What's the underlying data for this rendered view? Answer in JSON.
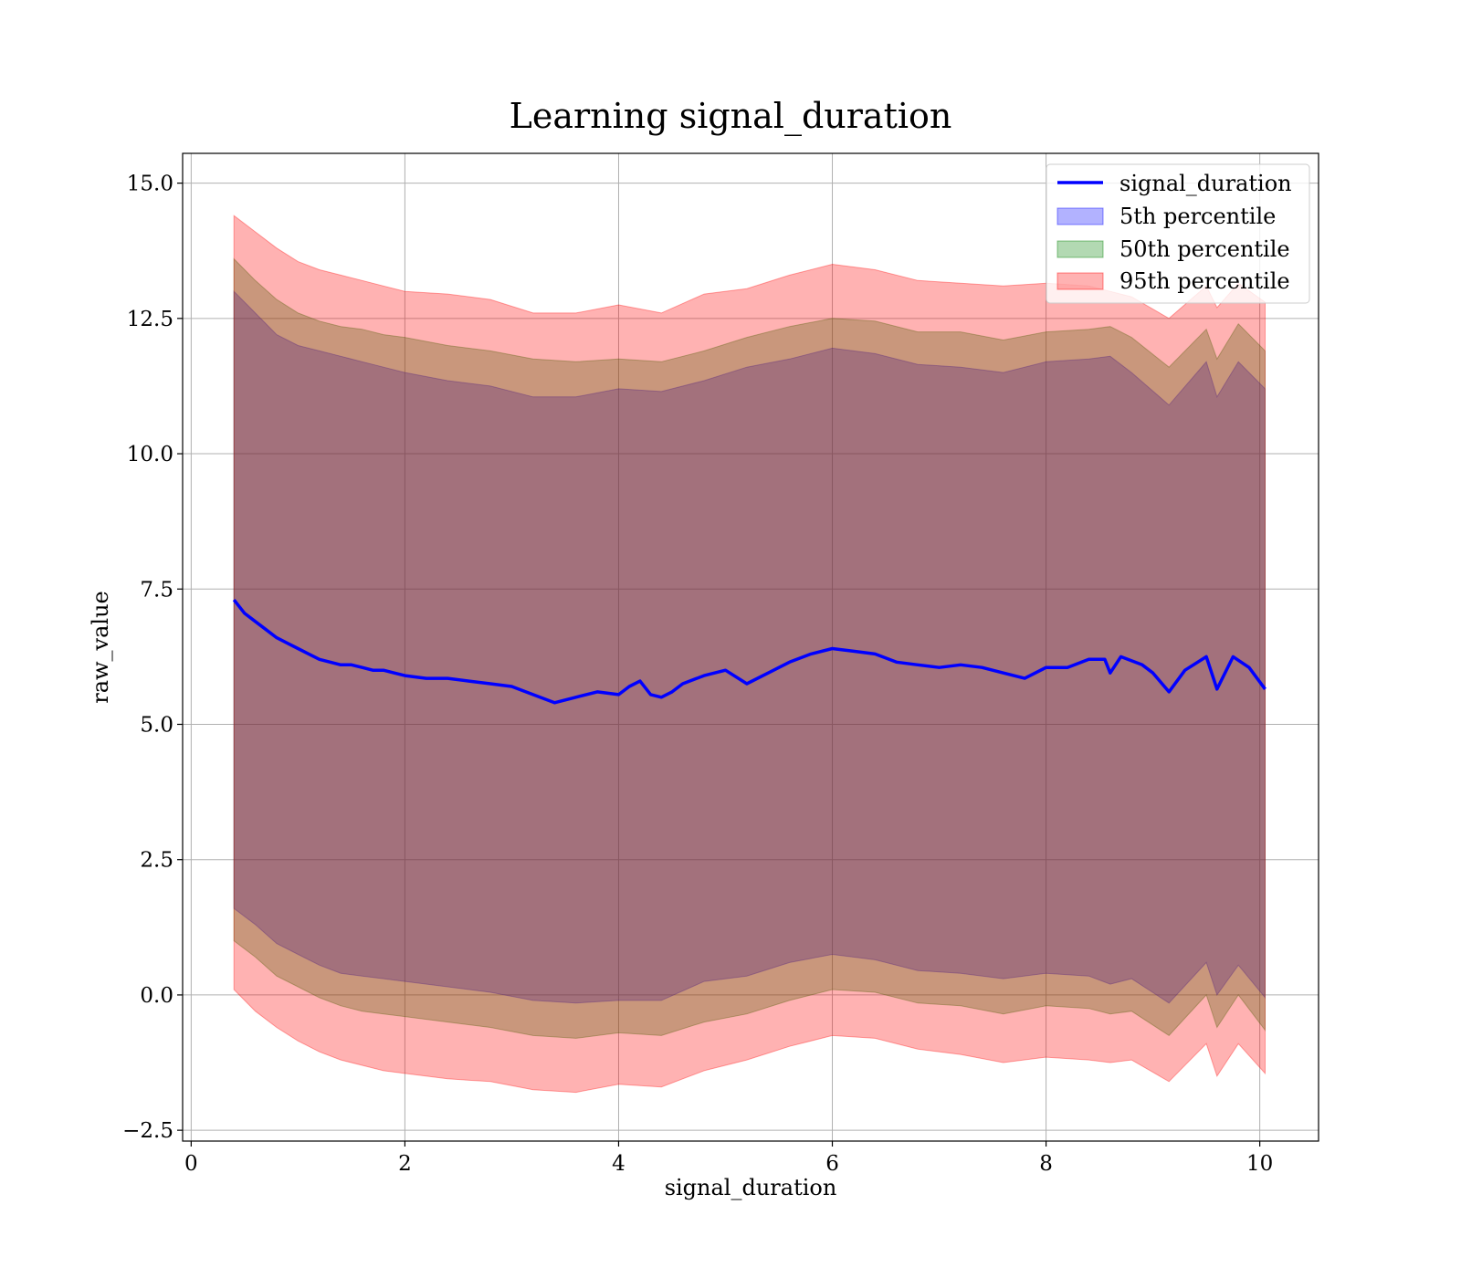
{
  "chart_data": {
    "type": "line",
    "title": "Learning signal_duration",
    "xlabel": "signal_duration",
    "ylabel": "raw_value",
    "xlim": [
      -0.08,
      10.55
    ],
    "ylim": [
      -2.7,
      15.55
    ],
    "xticks": [
      0,
      2,
      4,
      6,
      8,
      10
    ],
    "xtick_labels": [
      "0",
      "2",
      "4",
      "6",
      "8",
      "10"
    ],
    "yticks": [
      -2.5,
      0.0,
      2.5,
      5.0,
      7.5,
      10.0,
      12.5,
      15.0
    ],
    "ytick_labels": [
      "−2.5",
      "0.0",
      "2.5",
      "5.0",
      "7.5",
      "10.0",
      "12.5",
      "15.0"
    ],
    "grid": true,
    "legend_position": "top-right",
    "line": {
      "name": "signal_duration",
      "color": "#0000ff",
      "x": [
        0.4,
        0.5,
        0.6,
        0.7,
        0.8,
        0.9,
        1.0,
        1.1,
        1.2,
        1.3,
        1.4,
        1.5,
        1.6,
        1.7,
        1.8,
        1.9,
        2.0,
        2.2,
        2.4,
        2.6,
        2.8,
        3.0,
        3.2,
        3.4,
        3.6,
        3.8,
        4.0,
        4.1,
        4.2,
        4.3,
        4.4,
        4.5,
        4.6,
        4.8,
        5.0,
        5.2,
        5.4,
        5.6,
        5.8,
        6.0,
        6.2,
        6.4,
        6.6,
        6.8,
        7.0,
        7.2,
        7.4,
        7.6,
        7.8,
        8.0,
        8.2,
        8.4,
        8.55,
        8.6,
        8.7,
        8.9,
        9.0,
        9.15,
        9.3,
        9.5,
        9.6,
        9.75,
        9.9,
        10.05
      ],
      "y": [
        7.3,
        7.05,
        6.9,
        6.75,
        6.6,
        6.5,
        6.4,
        6.3,
        6.2,
        6.15,
        6.1,
        6.1,
        6.05,
        6.0,
        6.0,
        5.95,
        5.9,
        5.85,
        5.85,
        5.8,
        5.75,
        5.7,
        5.55,
        5.4,
        5.5,
        5.6,
        5.55,
        5.7,
        5.8,
        5.55,
        5.5,
        5.6,
        5.75,
        5.9,
        6.0,
        5.75,
        5.95,
        6.15,
        6.3,
        6.4,
        6.35,
        6.3,
        6.15,
        6.1,
        6.05,
        6.1,
        6.05,
        5.95,
        5.85,
        6.05,
        6.05,
        6.2,
        6.2,
        5.95,
        6.25,
        6.1,
        5.95,
        5.6,
        6.0,
        6.25,
        5.65,
        6.25,
        6.05,
        5.65
      ]
    },
    "bands": [
      {
        "name": "5th percentile",
        "color": "#0000ff",
        "opacity": 0.3,
        "x": [
          0.4,
          0.6,
          0.8,
          1.0,
          1.2,
          1.4,
          1.6,
          1.8,
          2.0,
          2.4,
          2.8,
          3.2,
          3.6,
          4.0,
          4.4,
          4.8,
          5.2,
          5.6,
          6.0,
          6.4,
          6.8,
          7.2,
          7.6,
          8.0,
          8.4,
          8.6,
          8.8,
          9.15,
          9.5,
          9.6,
          9.8,
          10.05
        ],
        "upper": [
          13.0,
          12.6,
          12.2,
          12.0,
          11.9,
          11.8,
          11.7,
          11.6,
          11.5,
          11.35,
          11.25,
          11.05,
          11.05,
          11.2,
          11.15,
          11.35,
          11.6,
          11.75,
          11.95,
          11.85,
          11.65,
          11.6,
          11.5,
          11.7,
          11.75,
          11.8,
          11.5,
          10.9,
          11.7,
          11.05,
          11.7,
          11.2
        ],
        "lower": [
          1.6,
          1.3,
          0.95,
          0.75,
          0.55,
          0.4,
          0.35,
          0.3,
          0.25,
          0.15,
          0.05,
          -0.1,
          -0.15,
          -0.1,
          -0.1,
          0.25,
          0.35,
          0.6,
          0.75,
          0.65,
          0.45,
          0.4,
          0.3,
          0.4,
          0.35,
          0.2,
          0.3,
          -0.15,
          0.6,
          0.0,
          0.55,
          -0.05
        ]
      },
      {
        "name": "50th percentile",
        "color": "#008000",
        "opacity": 0.3,
        "x": [
          0.4,
          0.6,
          0.8,
          1.0,
          1.2,
          1.4,
          1.6,
          1.8,
          2.0,
          2.4,
          2.8,
          3.2,
          3.6,
          4.0,
          4.4,
          4.8,
          5.2,
          5.6,
          6.0,
          6.4,
          6.8,
          7.2,
          7.6,
          8.0,
          8.4,
          8.6,
          8.8,
          9.15,
          9.5,
          9.6,
          9.8,
          10.05
        ],
        "upper": [
          13.6,
          13.2,
          12.85,
          12.6,
          12.45,
          12.35,
          12.3,
          12.2,
          12.15,
          12.0,
          11.9,
          11.75,
          11.7,
          11.75,
          11.7,
          11.9,
          12.15,
          12.35,
          12.5,
          12.45,
          12.25,
          12.25,
          12.1,
          12.25,
          12.3,
          12.35,
          12.15,
          11.6,
          12.3,
          11.75,
          12.4,
          11.9
        ],
        "lower": [
          1.0,
          0.7,
          0.35,
          0.15,
          -0.05,
          -0.2,
          -0.3,
          -0.35,
          -0.4,
          -0.5,
          -0.6,
          -0.75,
          -0.8,
          -0.7,
          -0.75,
          -0.5,
          -0.35,
          -0.1,
          0.1,
          0.05,
          -0.15,
          -0.2,
          -0.35,
          -0.2,
          -0.25,
          -0.35,
          -0.3,
          -0.75,
          0.0,
          -0.6,
          0.0,
          -0.65
        ]
      },
      {
        "name": "95th percentile",
        "color": "#ff0000",
        "opacity": 0.3,
        "x": [
          0.4,
          0.6,
          0.8,
          1.0,
          1.2,
          1.4,
          1.6,
          1.8,
          2.0,
          2.4,
          2.8,
          3.2,
          3.6,
          4.0,
          4.4,
          4.8,
          5.2,
          5.6,
          6.0,
          6.4,
          6.8,
          7.2,
          7.6,
          8.0,
          8.4,
          8.6,
          8.8,
          9.15,
          9.5,
          9.6,
          9.8,
          10.05
        ],
        "upper": [
          14.4,
          14.1,
          13.8,
          13.55,
          13.4,
          13.3,
          13.2,
          13.1,
          13.0,
          12.95,
          12.85,
          12.6,
          12.6,
          12.75,
          12.6,
          12.95,
          13.05,
          13.3,
          13.5,
          13.4,
          13.2,
          13.15,
          13.1,
          13.15,
          13.1,
          13.0,
          12.9,
          12.5,
          13.1,
          12.7,
          13.15,
          12.8
        ],
        "lower": [
          0.1,
          -0.3,
          -0.6,
          -0.85,
          -1.05,
          -1.2,
          -1.3,
          -1.4,
          -1.45,
          -1.55,
          -1.6,
          -1.75,
          -1.8,
          -1.65,
          -1.7,
          -1.4,
          -1.2,
          -0.95,
          -0.75,
          -0.8,
          -1.0,
          -1.1,
          -1.25,
          -1.15,
          -1.2,
          -1.25,
          -1.2,
          -1.6,
          -0.9,
          -1.5,
          -0.9,
          -1.45
        ]
      }
    ]
  },
  "legend": {
    "items": [
      {
        "label": "signal_duration",
        "kind": "line",
        "color": "#0000ff"
      },
      {
        "label": "5th percentile",
        "kind": "patch",
        "color": "#0000ff"
      },
      {
        "label": "50th percentile",
        "kind": "patch",
        "color": "#008000"
      },
      {
        "label": "95th percentile",
        "kind": "patch",
        "color": "#ff0000"
      }
    ]
  }
}
